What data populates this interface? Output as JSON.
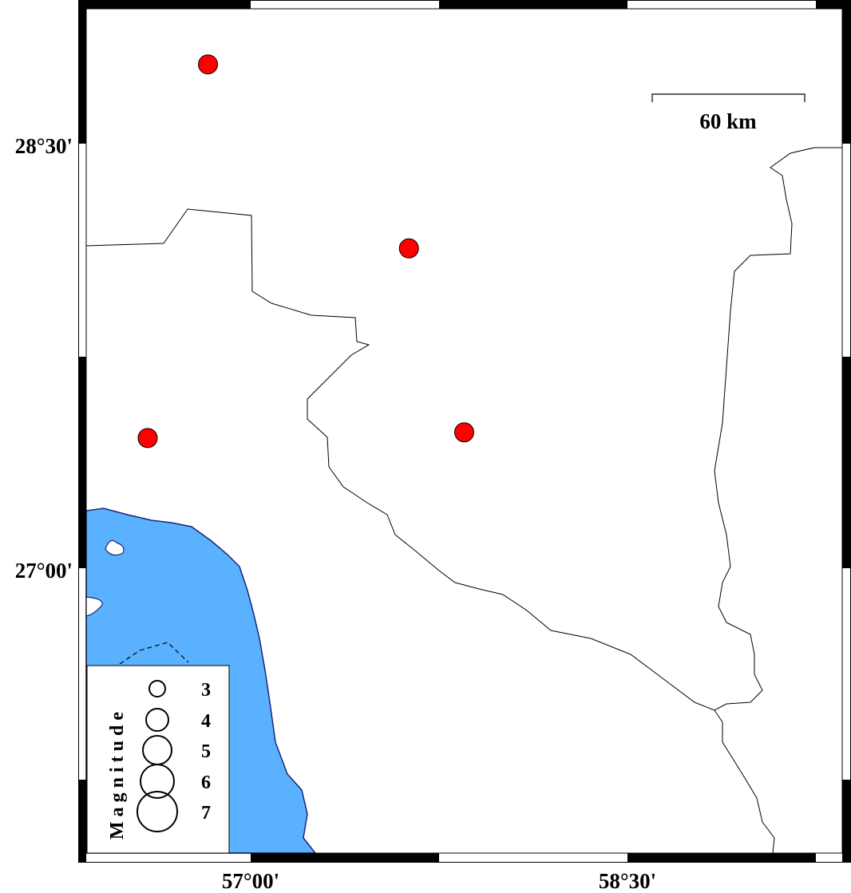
{
  "map": {
    "colors": {
      "sea": "#5ab1ff",
      "coast": "#1a237e",
      "event": "#ff0000",
      "land": "#ffffff"
    },
    "axes": {
      "left_labels": [
        "28°30'",
        "27°00'"
      ],
      "bottom_labels": [
        "57°00'",
        "58°30'"
      ]
    },
    "scale_bar": {
      "label": "60 km"
    },
    "legend": {
      "title": "Magnitude",
      "values": [
        "3",
        "4",
        "5",
        "6",
        "7"
      ]
    },
    "events": [
      {
        "lon": 56.83,
        "lat": 28.78
      },
      {
        "lon": 57.63,
        "lat": 28.13
      },
      {
        "lon": 56.59,
        "lat": 27.46
      },
      {
        "lon": 57.85,
        "lat": 27.48
      }
    ]
  }
}
